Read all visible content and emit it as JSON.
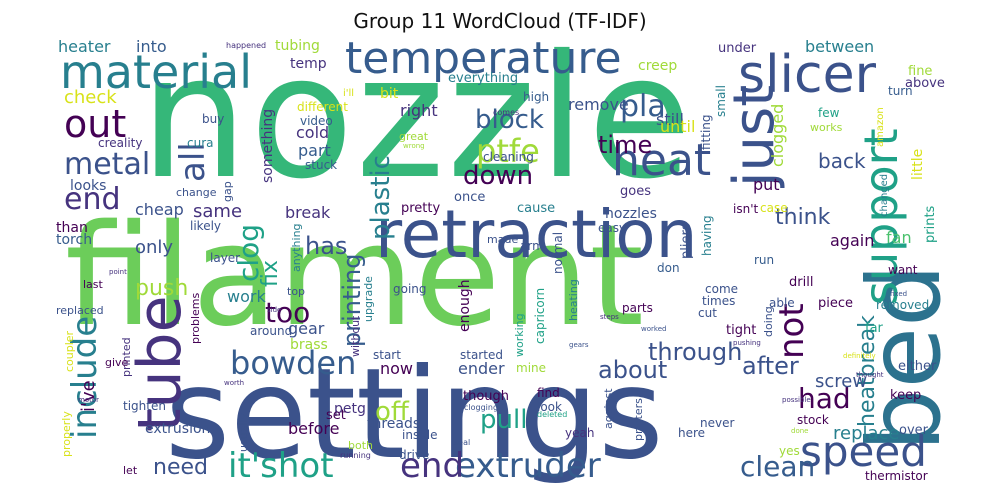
{
  "title": "Group 11 WordCloud (TF-IDF)",
  "words": {
    "nozzle": "nozzle",
    "filament": "filament",
    "settings": "settings",
    "retraction": "retraction",
    "bed": "bed",
    "temperature": "temperature",
    "material": "material",
    "slicer": "slicer",
    "support": "support",
    "heat": "heat",
    "just": "just",
    "tube": "tube",
    "include": "include",
    "speed": "speed",
    "extruder": "extruder",
    "its_hot": "it'shot",
    "end_b": "end",
    "bowden": "bowden",
    "out": "out",
    "end": "end",
    "metal": "metal",
    "all": "all",
    "ptfe": "ptfe",
    "block": "block",
    "pla": "pla",
    "down": "down",
    "time": "time",
    "plastic": "plastic",
    "clog": "clog",
    "printing": "printing",
    "too": "too",
    "not": "not",
    "heatbreak": "heatbreak",
    "through": "through",
    "after": "after",
    "had": "had",
    "clean": "clean",
    "need": "need",
    "off": "off",
    "pull": "pull",
    "about": "about",
    "push": "push",
    "fix": "fix",
    "has": "has",
    "check": "check",
    "heater": "heater",
    "into": "into",
    "back": "back",
    "think": "think",
    "same": "same",
    "cheap": "cheap",
    "only": "only",
    "work": "work",
    "replace": "replace",
    "screw": "screw",
    "ive": "i've",
    "clogged": "clogged",
    "cold": "cold",
    "part": "part",
    "right": "right",
    "remove": "remove",
    "still": "still",
    "until": "until",
    "between": "between",
    "creep": "creep",
    "tubing": "tubing",
    "temp": "temp",
    "bit": "bit",
    "something": "something",
    "looks": "looks",
    "than": "than",
    "torch": "torch",
    "fan": "fan",
    "again": "again",
    "break": "break",
    "gear": "gear",
    "brass": "brass",
    "ender": "ender",
    "now": "now",
    "enough": "enough",
    "before": "before",
    "extrusion": "extrusion",
    "threads": "threads",
    "petg": "petg",
    "video": "video",
    "stuck": "stuck",
    "cura": "cura",
    "creality": "creality",
    "buy": "buy",
    "cleaning": "cleaning",
    "everything": "everything",
    "high": "high",
    "nozzles": "nozzles",
    "pretty": "pretty",
    "cause": "cause",
    "once": "once",
    "goes": "goes",
    "put": "put",
    "little": "little",
    "prints": "prints",
    "isnt": "isn't",
    "case": "case",
    "pliers": "pliers",
    "having": "having",
    "small": "small",
    "fitting": "fitting",
    "few": "few",
    "works": "works",
    "turn": "turn",
    "above": "above",
    "fine": "fine",
    "under": "under",
    "amazon": "amazon",
    "changed": "changed",
    "great": "great",
    "different": "different",
    "ill": "i'll",
    "comes": "comes",
    "happened": "happened",
    "wrong": "wrong",
    "change": "change",
    "gap": "gap",
    "likely": "likely",
    "layer": "layer",
    "anything": "anything",
    "upgrade": "upgrade",
    "without": "without",
    "made": "made",
    "arm": "arm",
    "easy": "easy",
    "normal": "normal",
    "heating": "heating",
    "capricorn": "capricorn",
    "working": "working",
    "going": "going",
    "don": "don",
    "run": "run",
    "come": "come",
    "times": "times",
    "cut": "cut",
    "tight": "tight",
    "doing": "doing",
    "parts": "parts",
    "able": "able",
    "drill": "drill",
    "piece": "piece",
    "removed": "removed",
    "far": "far",
    "want": "want",
    "either": "either",
    "keep": "keep",
    "over": "over",
    "stock": "stock",
    "never": "never",
    "here": "here",
    "yeah": "yeah",
    "yes": "yes",
    "printers": "printers",
    "against": "against",
    "look": "look",
    "find": "find",
    "though": "though",
    "inside": "inside",
    "both": "both",
    "drive": "drive",
    "usually": "usually",
    "set": "set",
    "tighten": "tighten",
    "properly": "properly",
    "coupler": "coupler",
    "printed": "printed",
    "replaced": "replaced",
    "last": "last",
    "give": "give",
    "problems": "problems",
    "around": "around",
    "top": "top",
    "started": "started",
    "start": "start",
    "mine": "mine",
    "running": "running",
    "deleted": "deleted",
    "seal": "seal",
    "clogging": "clogging",
    "thermistor": "thermistor",
    "possible": "possible",
    "thought": "thought",
    "definitely": "definitely",
    "worked": "worked",
    "pushing": "pushing",
    "steps": "steps",
    "gears": "gears",
    "motor": "motor",
    "worth": "worth",
    "point": "point",
    "side": "side",
    "fixed": "fixed",
    "done": "done",
    "let": "let"
  },
  "colors": {
    "dark_purple": "#440154",
    "indigo": "#46337e",
    "blue": "#365c8d",
    "slate": "#3b528b",
    "teal": "#277f8e",
    "teal2": "#1fa187",
    "green": "#35b779",
    "light_green": "#4ac16d",
    "lime": "#a0da39",
    "yellow": "#d8e219"
  }
}
